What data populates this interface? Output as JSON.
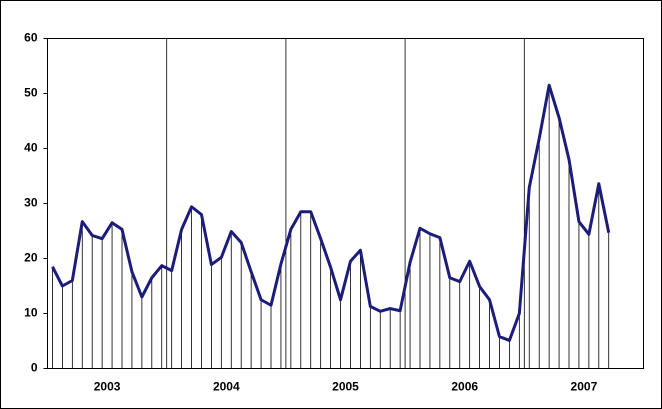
{
  "chart_data": {
    "type": "line",
    "categories": [
      null,
      null,
      null,
      null,
      null,
      null,
      "2003",
      null,
      null,
      null,
      null,
      null,
      null,
      null,
      null,
      null,
      null,
      null,
      "2004",
      null,
      null,
      null,
      null,
      null,
      null,
      null,
      null,
      null,
      null,
      null,
      "2005",
      null,
      null,
      null,
      null,
      null,
      null,
      null,
      null,
      null,
      null,
      null,
      "2006",
      null,
      null,
      null,
      null,
      null,
      null,
      null,
      null,
      null,
      null,
      null,
      "2007",
      null,
      null,
      null,
      null,
      null
    ],
    "series": [
      {
        "color": "#1c1c7a",
        "values": [
          18.5,
          15,
          16,
          26.7,
          24.2,
          23.6,
          26.5,
          25.3,
          17.6,
          13,
          16.5,
          18.7,
          17.8,
          25.3,
          29.4,
          28,
          18.9,
          20.2,
          24.9,
          22.9,
          17.6,
          12.5,
          11.5,
          19,
          25.3,
          28.5,
          28.5,
          23.6,
          18.4,
          12.5,
          19.5,
          21.5,
          11.3,
          10.4,
          10.9,
          10.5,
          19.3,
          25.5,
          24.5,
          23.8,
          16.5,
          15.8,
          19.5,
          14.9,
          12.5,
          5.8,
          5.1,
          10,
          32.9,
          41.8,
          51.5,
          45.6,
          38,
          26.7,
          24.4,
          33.6,
          24.7,
          null,
          null,
          null
        ]
      }
    ],
    "ylim": [
      0,
      60
    ],
    "yticks": [
      0,
      10,
      20,
      30,
      40,
      50,
      60
    ],
    "drop_lines": true
  }
}
